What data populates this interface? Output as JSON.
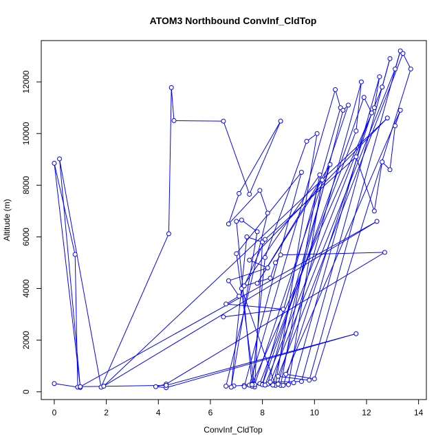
{
  "chart_data": {
    "type": "line",
    "title": "ATOM3 Northbound ConvInf_CldTop",
    "xlabel": "ConvInf_CldTop",
    "ylabel": "Altitude (m)",
    "xlim": [
      -0.5,
      14.3
    ],
    "ylim": [
      -300,
      13600
    ],
    "xticks": [
      0,
      2,
      4,
      6,
      8,
      10,
      12,
      14
    ],
    "yticks": [
      0,
      2000,
      4000,
      6000,
      8000,
      10000,
      12000
    ],
    "xtick_labels": [
      "0",
      "2",
      "4",
      "6",
      "8",
      "10",
      "12",
      "14"
    ],
    "ytick_labels": [
      "0",
      "2000",
      "4000",
      "6000",
      "8000",
      "10000",
      "12000"
    ],
    "grid": false,
    "legend": "none",
    "series_color": "#0000ff",
    "marker": "open-circle",
    "series": [
      {
        "x": [
          0.0,
          0.9,
          0.8,
          0.0,
          1.0,
          0.2,
          1.8,
          4.4,
          4.5,
          4.6,
          6.5,
          7.5,
          8.7,
          7.1,
          6.7,
          7.9,
          8.2,
          6.6,
          6.9,
          7.3,
          7.6,
          7.0,
          7.2,
          7.8,
          6.8,
          7.4,
          8.0,
          7.7,
          7.0,
          9.5,
          7.3,
          7.6,
          8.1,
          9.7,
          10.1,
          8.5,
          7.2,
          10.2,
          8.7,
          9.0,
          10.3,
          7.8,
          10.6,
          8.2,
          7.5,
          10.8,
          11.0,
          8.0,
          7.7,
          11.3,
          11.1,
          8.4,
          7.9,
          11.6,
          11.8,
          8.6,
          8.0,
          11.9,
          12.2,
          8.8,
          7.6,
          12.3,
          12.5,
          9.2,
          8.1,
          12.6,
          12.9,
          9.5,
          8.3,
          13.1,
          13.3,
          9.8,
          8.6,
          13.4,
          13.7,
          10.0,
          8.9,
          13.3,
          13.1,
          12.9,
          12.6,
          12.3,
          11.6,
          8.1,
          7.3,
          8.3,
          8.5,
          8.7,
          12.7,
          4.3,
          3.9,
          4.3,
          11.6,
          4.3,
          1.0,
          12.4,
          1.9,
          12.8,
          7.5,
          8.2,
          6.7,
          7.1,
          6.6,
          8.8,
          6.5
        ],
        "y": [
          320,
          180,
          5320,
          8850,
          170,
          9020,
          180,
          6120,
          11780,
          10500,
          10480,
          7650,
          10480,
          7680,
          6500,
          7800,
          6920,
          220,
          230,
          250,
          300,
          6600,
          6650,
          6200,
          180,
          6000,
          5800,
          190,
          5350,
          8500,
          200,
          220,
          5200,
          9700,
          10000,
          250,
          4000,
          8400,
          250,
          280,
          8200,
          4200,
          8800,
          300,
          260,
          11700,
          11000,
          300,
          280,
          11100,
          10900,
          260,
          320,
          10100,
          12000,
          300,
          280,
          11400,
          10800,
          250,
          280,
          11000,
          12200,
          350,
          260,
          11800,
          12900,
          400,
          380,
          12500,
          13200,
          450,
          600,
          13100,
          12500,
          500,
          680,
          10900,
          10300,
          8600,
          8900,
          7000,
          9100,
          5900,
          4100,
          4400,
          5000,
          5300,
          5400,
          300,
          200,
          160,
          2250,
          250,
          200,
          6600,
          220,
          10600,
          5100,
          4800,
          4300,
          3700,
          3400,
          3200,
          2900
        ]
      }
    ]
  }
}
